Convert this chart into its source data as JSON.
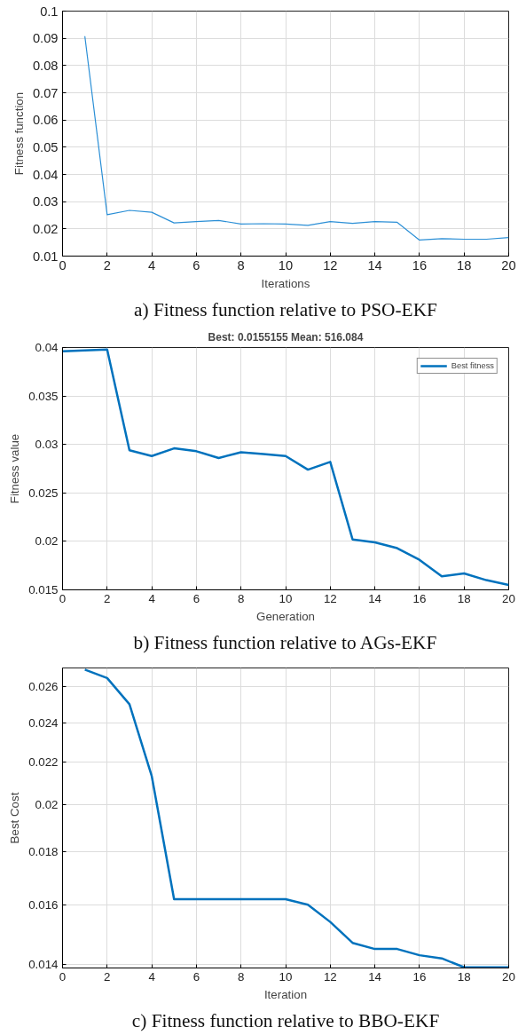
{
  "chart_data": [
    {
      "type": "line",
      "xlabel": "Iterations",
      "ylabel": "Fitness function",
      "xlim": [
        0,
        20
      ],
      "xticks": [
        0,
        2,
        4,
        6,
        8,
        10,
        12,
        14,
        16,
        18,
        20
      ],
      "ylim": [
        0.01,
        0.1
      ],
      "yticks": [
        0.01,
        0.02,
        0.03,
        0.04,
        0.05,
        0.06,
        0.07,
        0.08,
        0.09,
        0.1
      ],
      "grid": true,
      "legend": false,
      "annotations": [
        "a) Fitness function relative to PSO-EKF"
      ],
      "x": [
        1,
        2,
        3,
        4,
        5,
        6,
        7,
        8,
        9,
        10,
        11,
        12,
        13,
        14,
        15,
        16,
        17,
        18,
        19,
        20
      ],
      "series": [
        {
          "color": "#2b8fd6",
          "values": [
            0.0908,
            0.0252,
            0.0268,
            0.0261,
            0.0222,
            0.0227,
            0.0231,
            0.0218,
            0.0219,
            0.0218,
            0.0213,
            0.0227,
            0.022,
            0.0227,
            0.0224,
            0.0159,
            0.0164,
            0.0162,
            0.0162,
            0.0168
          ]
        }
      ]
    },
    {
      "type": "line",
      "title": "Best: 0.0155155 Mean: 516.084",
      "xlabel": "Generation",
      "ylabel": "Fitness value",
      "xlim": [
        0,
        20
      ],
      "xticks": [
        0,
        2,
        4,
        6,
        8,
        10,
        12,
        14,
        16,
        18,
        20
      ],
      "ylim": [
        0.015,
        0.04
      ],
      "yticks": [
        0.015,
        0.02,
        0.025,
        0.03,
        0.035,
        0.04
      ],
      "grid": true,
      "legend": "top right",
      "annotations": [
        "b) Fitness function relative to AGs-EKF"
      ],
      "x": [
        0,
        1,
        2,
        3,
        4,
        5,
        6,
        7,
        8,
        9,
        10,
        11,
        12,
        13,
        14,
        15,
        16,
        17,
        18,
        19,
        20
      ],
      "series": [
        {
          "name": "Best fitness",
          "color": "#0072bd",
          "values": [
            0.0396,
            0.0397,
            0.0398,
            0.0294,
            0.0288,
            0.0296,
            0.0293,
            0.0286,
            0.0292,
            0.029,
            0.0288,
            0.0274,
            0.0282,
            0.0202,
            0.0199,
            0.0193,
            0.0181,
            0.0164,
            0.0167,
            0.016,
            0.0155
          ]
        }
      ]
    },
    {
      "type": "line",
      "xlabel": "Iteration",
      "ylabel": "Best Cost",
      "log": "y",
      "xlim": [
        0,
        20
      ],
      "xticks": [
        0,
        2,
        4,
        6,
        8,
        10,
        12,
        14,
        16,
        18,
        20
      ],
      "ylim": [
        0.0139,
        0.0271
      ],
      "yticks": [
        0.014,
        0.016,
        0.018,
        0.02,
        0.022,
        0.024,
        0.026
      ],
      "grid": true,
      "legend": false,
      "annotations": [
        "c) Fitness function relative to BBO-EKF"
      ],
      "x": [
        1,
        2,
        3,
        4,
        5,
        6,
        7,
        8,
        9,
        10,
        11,
        12,
        13,
        14,
        15,
        16,
        17,
        18,
        19,
        20
      ],
      "series": [
        {
          "color": "#0072bd",
          "values": [
            0.027,
            0.0265,
            0.025,
            0.0213,
            0.0162,
            0.0162,
            0.0162,
            0.0162,
            0.0162,
            0.0162,
            0.016,
            0.0154,
            0.0147,
            0.0145,
            0.0145,
            0.0143,
            0.0142,
            0.01392,
            0.01392,
            0.01392
          ]
        }
      ]
    }
  ]
}
